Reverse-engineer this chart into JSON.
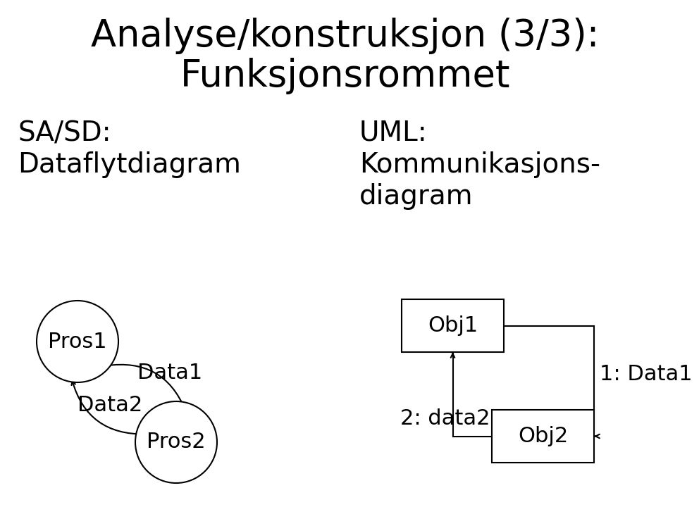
{
  "title_line1": "Analyse/konstruksjon (3/3):",
  "title_line2": "Funksjonsrommet",
  "label_sasd": "SA/SD:",
  "label_datafly": "Dataflytdiagram",
  "label_uml": "UML:",
  "label_komm_1": "Kommunikasjons-",
  "label_komm_2": "diagram",
  "pros1_label": "Pros1",
  "pros2_label": "Pros2",
  "data1_label": "Data1",
  "data2_label": "Data2",
  "obj1_label": "Obj1",
  "obj2_label": "Obj2",
  "arrow1_label": "1: Data1",
  "arrow2_label": "2: data2",
  "bg_color": "#ffffff",
  "text_color": "#000000",
  "title_fontsize": 38,
  "label_fontsize": 28,
  "diagram_fontsize": 22
}
